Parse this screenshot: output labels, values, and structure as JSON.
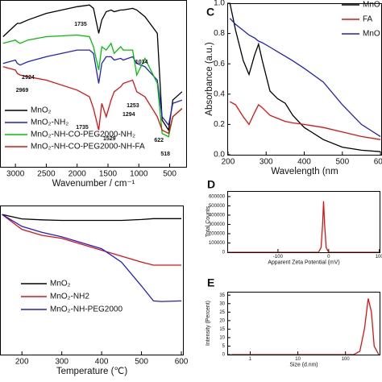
{
  "chart_data": [
    {
      "type": "line",
      "xlabel": "Wavenumber / cm⁻¹",
      "xlim": [
        3250,
        220
      ],
      "ylim": [
        0,
        100
      ],
      "xticks": [
        3000,
        2500,
        2000,
        1500,
        1000,
        500
      ],
      "x": [
        3200,
        3000,
        2969,
        2924,
        2800,
        2500,
        2000,
        1800,
        1735,
        1650,
        1600,
        1529,
        1450,
        1400,
        1294,
        1253,
        1100,
        1034,
        900,
        700,
        622,
        518,
        450,
        300
      ],
      "series": [
        {
          "name": "MnO₂",
          "color": "#000000",
          "values": [
            78,
            85,
            86,
            86,
            88,
            92,
            96,
            97,
            95,
            80,
            88,
            93,
            94,
            93,
            94,
            94,
            95,
            94,
            90,
            80,
            28,
            22,
            40,
            45
          ]
        },
        {
          "name": "MnO₂-NH₂",
          "color": "#1f1fd0",
          "values": [
            62,
            64,
            62,
            61,
            63,
            66,
            70,
            70,
            68,
            50,
            62,
            66,
            66,
            64,
            65,
            64,
            66,
            62,
            60,
            52,
            30,
            25,
            38,
            40
          ]
        },
        {
          "name": "MnO₂-NH-CO-PEG2000-NH₂",
          "color": "#00c000",
          "values": [
            74,
            76,
            75,
            74,
            76,
            78,
            79,
            78,
            72,
            58,
            72,
            70,
            74,
            68,
            72,
            70,
            70,
            55,
            65,
            50,
            20,
            18,
            30,
            35
          ]
        },
        {
          "name": "MnO₂-NH-CO-PEG2000-NH-FA",
          "color": "#e01010",
          "values": [
            60,
            58,
            56,
            55,
            54,
            52,
            46,
            42,
            35,
            22,
            38,
            30,
            40,
            45,
            48,
            50,
            52,
            45,
            42,
            30,
            22,
            20,
            30,
            35
          ]
        }
      ],
      "annotations": [
        1735,
        2924,
        2969,
        1735,
        1529,
        1294,
        1253,
        1034,
        622,
        518
      ]
    },
    {
      "type": "line",
      "panel_label": "C",
      "xlabel": "Wavelength (nm",
      "ylabel": "Absorbance (a.u.)",
      "xlim": [
        198,
        604
      ],
      "ylim": [
        0,
        1.0
      ],
      "xticks": [
        200,
        300,
        400,
        500,
        600
      ],
      "yticks": [
        {
          "value": 0,
          "label": "0.0"
        },
        0.2,
        0.4,
        0.6,
        0.8,
        {
          "value": 1,
          "label": "1.0"
        }
      ],
      "x": [
        205,
        220,
        240,
        255,
        270,
        280,
        290,
        310,
        330,
        350,
        370,
        400,
        450,
        500,
        550,
        600
      ],
      "series": [
        {
          "name": "MnO",
          "color": "#000000",
          "values": [
            1.0,
            0.82,
            0.62,
            0.53,
            0.66,
            0.73,
            0.62,
            0.42,
            0.37,
            0.34,
            0.26,
            0.18,
            0.1,
            0.05,
            0.03,
            0.02
          ]
        },
        {
          "name": "FA",
          "color": "#e01010",
          "values": [
            0.35,
            0.33,
            0.25,
            0.2,
            0.28,
            0.33,
            0.31,
            0.26,
            0.24,
            0.22,
            0.21,
            0.2,
            0.18,
            0.15,
            0.12,
            0.1
          ]
        },
        {
          "name": "MnO",
          "color": "#1f1fd0",
          "values": [
            0.9,
            0.86,
            0.82,
            0.79,
            0.77,
            0.75,
            0.74,
            0.71,
            0.68,
            0.65,
            0.62,
            0.57,
            0.48,
            0.33,
            0.2,
            0.12
          ]
        }
      ]
    },
    {
      "type": "line",
      "xlabel": "Temperature (℃)",
      "xlim": [
        145,
        606
      ],
      "ylim": [
        50,
        100
      ],
      "xticks": [
        200,
        300,
        400,
        500,
        600
      ],
      "x": [
        150,
        200,
        250,
        300,
        350,
        400,
        450,
        500,
        530,
        550,
        600
      ],
      "series": [
        {
          "name": "MnO₂",
          "color": "#000000",
          "values": [
            97,
            95.5,
            95.2,
            95,
            95,
            95,
            95,
            95.3,
            95.6,
            95.6,
            95.6
          ]
        },
        {
          "name": "MnO₂-NH2",
          "color": "#e01010",
          "values": [
            97,
            92,
            90,
            89,
            87,
            85,
            83,
            81,
            80,
            80,
            80
          ]
        },
        {
          "name": "MnO₂-NH-PEG2000",
          "color": "#1f1fd0",
          "values": [
            97,
            93,
            91,
            89.5,
            87.5,
            85.5,
            81,
            73,
            68,
            67.8,
            68
          ]
        }
      ]
    },
    {
      "type": "line",
      "panel_label": "D",
      "xlabel": "Apparent Zeta Potential (mV)",
      "ylabel": "Total Counts",
      "xlim": [
        -200,
        102
      ],
      "ylim": [
        0,
        660000
      ],
      "xticks": [
        -100,
        0,
        100
      ],
      "yticks": [
        0,
        100000,
        200000,
        300000,
        400000,
        500000,
        600000
      ],
      "x": [
        -200,
        -30,
        -20,
        -15,
        -12,
        -10,
        -8,
        -5,
        0,
        100
      ],
      "series": [
        {
          "color": "#e01010",
          "values": [
            0,
            0,
            0,
            50000,
            300000,
            550000,
            300000,
            50000,
            0,
            0
          ]
        }
      ]
    },
    {
      "type": "line",
      "panel_label": "E",
      "xlabel": "Size (d.nm)",
      "ylabel": "Intensity (Percent)",
      "xscale": "log",
      "xlim": [
        0.33,
        540
      ],
      "ylim": [
        0,
        37
      ],
      "xticks": [
        1,
        10,
        100
      ],
      "yticks": [
        0,
        5,
        10,
        15,
        20,
        25,
        30,
        35
      ],
      "x": [
        0.4,
        100,
        150,
        200,
        250,
        300,
        350,
        400,
        500
      ],
      "series": [
        {
          "color": "#e01010",
          "values": [
            0,
            0,
            0,
            2,
            15,
            33,
            25,
            5,
            0
          ]
        }
      ]
    }
  ]
}
